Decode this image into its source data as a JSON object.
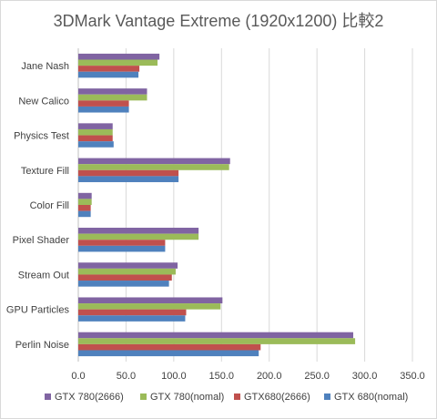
{
  "chart_data": {
    "type": "bar",
    "orientation": "horizontal",
    "title": "3DMark Vantage Extreme (1920x1200) 比較2",
    "xlabel": "",
    "ylabel": "",
    "xlim": [
      0,
      350
    ],
    "xticks": [
      0,
      50,
      100,
      150,
      200,
      250,
      300,
      350
    ],
    "xtick_labels": [
      "0.0",
      "50.0",
      "100.0",
      "150.0",
      "200.0",
      "250.0",
      "300.0",
      "350.0"
    ],
    "grid": true,
    "legend_position": "bottom",
    "categories": [
      "Jane Nash",
      "New Calico",
      "Physics Test",
      "Texture Fill",
      "Color Fill",
      "Pixel Shader",
      "Stream Out",
      "GPU Particles",
      "Perlin Noise"
    ],
    "series": [
      {
        "name": "GTX 780(2666)",
        "color": "#8064A2",
        "values": [
          85,
          72,
          36,
          159,
          14,
          126,
          104,
          151,
          288
        ]
      },
      {
        "name": "GTX 780(nomal)",
        "color": "#9BBB59",
        "values": [
          83,
          72,
          36,
          158,
          14,
          126,
          102,
          149,
          290
        ]
      },
      {
        "name": "GTX680(2666)",
        "color": "#C0504D",
        "values": [
          64,
          53,
          36,
          105,
          13,
          91,
          98,
          113,
          191
        ]
      },
      {
        "name": "GTX 680(nomal)",
        "color": "#4F81BD",
        "values": [
          63,
          53,
          37,
          105,
          13,
          91,
          95,
          112,
          189
        ]
      }
    ]
  }
}
